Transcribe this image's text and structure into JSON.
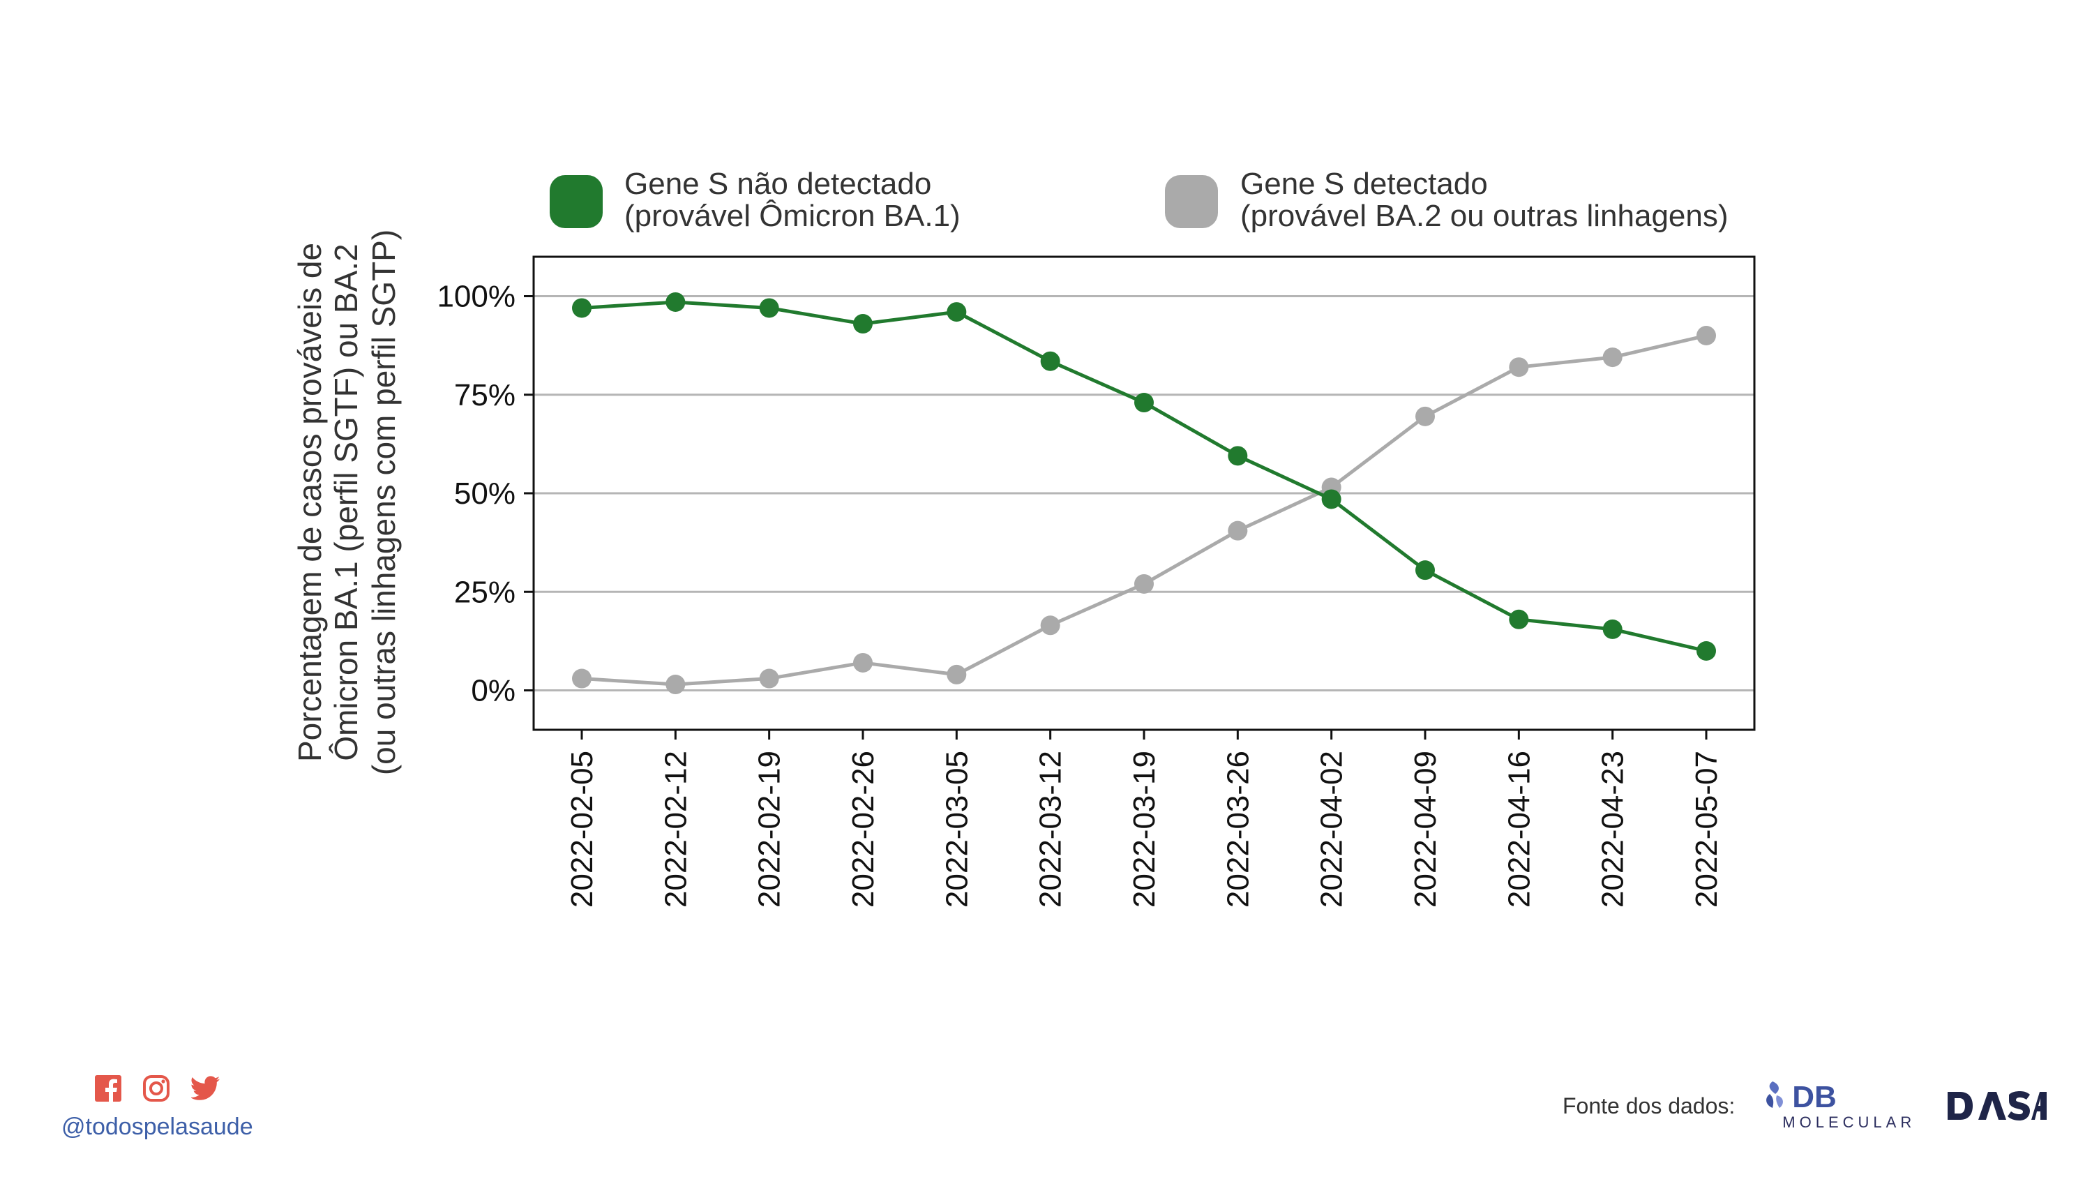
{
  "chart_data": {
    "type": "line",
    "x": [
      "2022-02-05",
      "2022-02-12",
      "2022-02-19",
      "2022-02-26",
      "2022-03-05",
      "2022-03-12",
      "2022-03-19",
      "2022-03-26",
      "2022-04-02",
      "2022-04-09",
      "2022-04-16",
      "2022-04-23",
      "2022-05-07"
    ],
    "series": [
      {
        "name_lines": [
          "Gene S não detectado",
          "(provável Ômicron BA.1)"
        ],
        "color": "#217a2e",
        "values": [
          97,
          98.5,
          97,
          93,
          96,
          83.5,
          73,
          59.5,
          48.5,
          30.5,
          18,
          15.5,
          10
        ]
      },
      {
        "name_lines": [
          "Gene S detectado",
          "(provável BA.2 ou outras linhagens)"
        ],
        "color": "#aaaaaa",
        "values": [
          3,
          1.5,
          3,
          7,
          4,
          16.5,
          27,
          40.5,
          51.5,
          69.5,
          82,
          84.5,
          90
        ]
      }
    ],
    "ylabel_lines": [
      "Porcentagem de casos prováveis de",
      "Ômicron BA.1 (perfil SGTF) ou BA.2",
      "(ou outras linhagens com perfil SGTP)"
    ],
    "ylim": [
      -10,
      110
    ],
    "yticks": [
      0,
      25,
      50,
      75,
      100
    ],
    "ytick_labels": [
      "0%",
      "25%",
      "50%",
      "75%",
      "100%"
    ],
    "grid": "horizontal",
    "legend_placement": "top"
  },
  "footer": {
    "handle": "@todospelasaude",
    "source_label": "Fonte dos dados:",
    "db_logo_text": "DB",
    "db_logo_subtext": "MOLECULAR",
    "dasa_logo_text": "DASA"
  },
  "icons": {
    "social": [
      "facebook-icon",
      "instagram-icon",
      "twitter-icon"
    ],
    "social_color": "#e4574a"
  }
}
